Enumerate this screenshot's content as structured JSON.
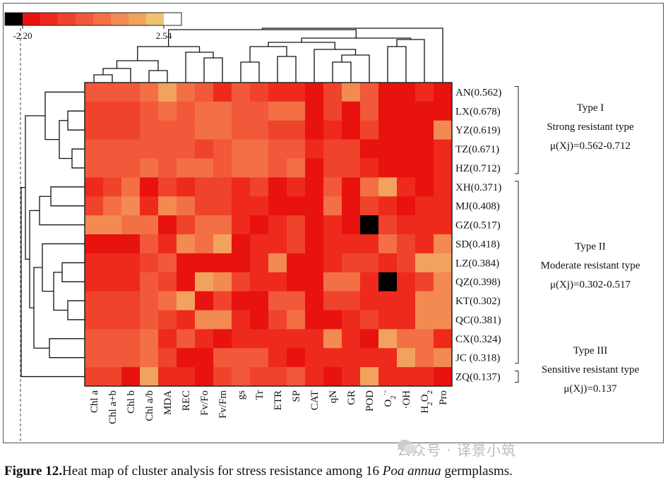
{
  "colorbar": {
    "min_label": "-2.20",
    "max_label": "2.54",
    "colors": [
      "#000000",
      "#e8120f",
      "#ee2a1c",
      "#f0432b",
      "#f2583a",
      "#f36f45",
      "#f38a52",
      "#f1a35d",
      "#efc36d",
      "#ffffff"
    ]
  },
  "columns": [
    "Chl a",
    "Chl a+b",
    "Chl b",
    "Chl a/b",
    "MDA",
    "REC",
    "Fv/Fo",
    "Fv/Fm",
    "gs",
    "Tr",
    "ETR",
    "SP",
    "CAT",
    "qN",
    "GR",
    "POD",
    "O2·-",
    "·OH",
    "H2O2",
    "Pro"
  ],
  "column_labels": [
    {
      "text": "Chl a"
    },
    {
      "text": "Chl a+b"
    },
    {
      "text": "Chl b"
    },
    {
      "text": "Chl a/b"
    },
    {
      "text": "MDA"
    },
    {
      "text": "REC"
    },
    {
      "text": "Fv/Fo"
    },
    {
      "text": "Fv/Fm"
    },
    {
      "text": "gs"
    },
    {
      "text": "Tr"
    },
    {
      "text": "ETR"
    },
    {
      "text": "SP"
    },
    {
      "text": "CAT"
    },
    {
      "text": "qN"
    },
    {
      "text": "GR"
    },
    {
      "text": "POD"
    },
    {
      "text": "O",
      "sub": "2",
      "sup": "·-"
    },
    {
      "text": "·OH"
    },
    {
      "text": "H",
      "sub": "2",
      "text2": "O",
      "sub2": "2"
    },
    {
      "text": "Pro"
    }
  ],
  "row_labels": [
    "AN(0.562)",
    "LX(0.678)",
    "YZ(0.619)",
    "TZ(0.671)",
    "HZ(0.712)",
    "XH(0.371)",
    "MJ(0.408)",
    "GZ(0.517)",
    "SD(0.418)",
    "LZ(0.384)",
    "QZ(0.398)",
    "KT(0.302)",
    "QC(0.381)",
    "CX(0.324)",
    "JC (0.318)",
    "ZQ(0.137)"
  ],
  "groups": [
    {
      "type": "Type I",
      "desc": "Strong resistant type",
      "range": "μ(Xj)=0.562-0.712"
    },
    {
      "type": "Type II",
      "desc": "Moderate resistant type",
      "range": "μ(Xj)=0.302-0.517"
    },
    {
      "type": "Type III",
      "desc": "Sensitive resistant type",
      "range": "μ(Xj)=0.137"
    }
  ],
  "caption": {
    "label": "Figure 12.",
    "text_before": "Heat map of cluster analysis for stress resistance among 16 ",
    "italic": "Poa annua",
    "text_after": " germplasms."
  },
  "watermark": "公众号 · 译景小筑",
  "chart_data": {
    "type": "heatmap",
    "x_labels": [
      "Chl a",
      "Chl a+b",
      "Chl b",
      "Chl a/b",
      "MDA",
      "REC",
      "Fv/Fo",
      "Fv/Fm",
      "gs",
      "Tr",
      "ETR",
      "SP",
      "CAT",
      "qN",
      "GR",
      "POD",
      "O2·-",
      "·OH",
      "H2O2",
      "Pro"
    ],
    "y_labels": [
      "AN(0.562)",
      "LX(0.678)",
      "YZ(0.619)",
      "TZ(0.671)",
      "HZ(0.712)",
      "XH(0.371)",
      "MJ(0.408)",
      "GZ(0.517)",
      "SD(0.418)",
      "LZ(0.384)",
      "QZ(0.398)",
      "KT(0.302)",
      "QC(0.381)",
      "CX(0.324)",
      "JC (0.318)",
      "ZQ(0.137)"
    ],
    "color_range": [
      -2.2,
      2.54
    ],
    "levels": [
      [
        4,
        4,
        4,
        5,
        7,
        5,
        4,
        2,
        4,
        3,
        2,
        2,
        1,
        3,
        6,
        4,
        1,
        1,
        2,
        1
      ],
      [
        3,
        3,
        3,
        4,
        5,
        4,
        5,
        5,
        4,
        4,
        5,
        5,
        1,
        3,
        1,
        4,
        1,
        1,
        1,
        1
      ],
      [
        3,
        3,
        3,
        4,
        4,
        4,
        5,
        5,
        4,
        4,
        3,
        3,
        1,
        2,
        1,
        3,
        1,
        1,
        1,
        6
      ],
      [
        4,
        4,
        4,
        4,
        4,
        4,
        3,
        4,
        5,
        5,
        4,
        4,
        2,
        3,
        3,
        1,
        1,
        1,
        1,
        2
      ],
      [
        4,
        4,
        4,
        5,
        4,
        5,
        5,
        4,
        5,
        5,
        4,
        5,
        1,
        3,
        3,
        2,
        1,
        1,
        1,
        2
      ],
      [
        2,
        3,
        5,
        1,
        3,
        2,
        3,
        3,
        2,
        3,
        1,
        2,
        1,
        4,
        1,
        5,
        7,
        2,
        1,
        2
      ],
      [
        3,
        5,
        6,
        2,
        6,
        5,
        3,
        3,
        2,
        2,
        1,
        1,
        1,
        5,
        1,
        3,
        2,
        1,
        2,
        2
      ],
      [
        6,
        6,
        5,
        5,
        1,
        3,
        5,
        5,
        2,
        1,
        2,
        3,
        1,
        2,
        1,
        0,
        3,
        2,
        2,
        2
      ],
      [
        1,
        1,
        1,
        4,
        2,
        6,
        5,
        7,
        1,
        2,
        2,
        3,
        1,
        2,
        2,
        2,
        5,
        3,
        2,
        6
      ],
      [
        2,
        2,
        2,
        3,
        4,
        1,
        1,
        1,
        1,
        2,
        6,
        1,
        1,
        2,
        3,
        3,
        2,
        3,
        7,
        7
      ],
      [
        2,
        2,
        2,
        4,
        3,
        1,
        7,
        6,
        3,
        2,
        2,
        1,
        1,
        5,
        5,
        2,
        0,
        2,
        3,
        6
      ],
      [
        3,
        3,
        3,
        4,
        5,
        7,
        1,
        3,
        1,
        1,
        4,
        4,
        1,
        3,
        3,
        2,
        2,
        2,
        6,
        6
      ],
      [
        3,
        3,
        3,
        4,
        3,
        2,
        6,
        6,
        2,
        1,
        3,
        5,
        1,
        1,
        2,
        3,
        2,
        2,
        6,
        6
      ],
      [
        4,
        4,
        4,
        5,
        2,
        4,
        2,
        1,
        2,
        2,
        2,
        2,
        2,
        6,
        2,
        1,
        7,
        5,
        5,
        2
      ],
      [
        4,
        4,
        4,
        5,
        3,
        1,
        1,
        4,
        4,
        4,
        2,
        1,
        2,
        2,
        2,
        2,
        2,
        7,
        5,
        6
      ],
      [
        3,
        3,
        1,
        7,
        2,
        2,
        1,
        3,
        4,
        3,
        3,
        4,
        2,
        1,
        2,
        7,
        2,
        2,
        2,
        1
      ]
    ]
  }
}
